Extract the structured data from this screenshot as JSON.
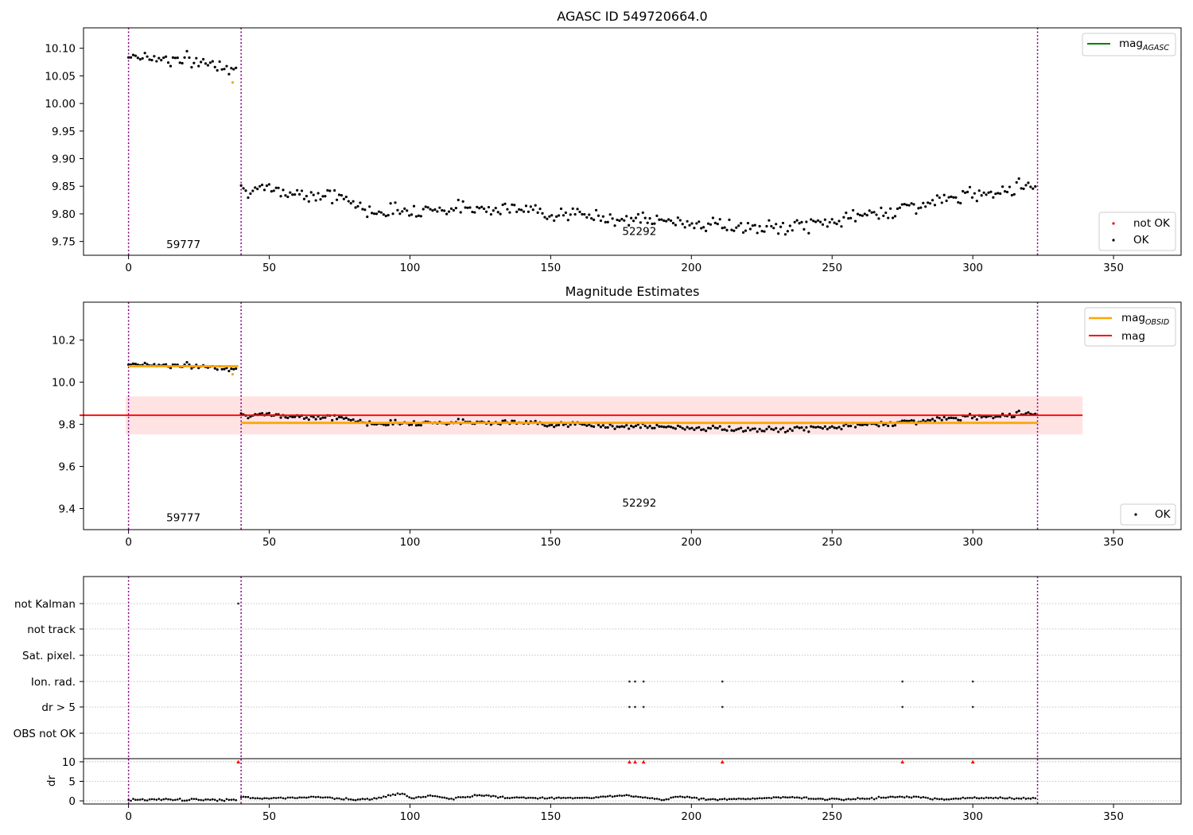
{
  "chart_data": [
    {
      "id": "top",
      "type": "scatter",
      "title": "AGASC ID 549720664.0",
      "xlim": [
        -16,
        374
      ],
      "ylim": [
        9.725,
        10.137
      ],
      "x_ticks": [
        0,
        50,
        100,
        150,
        200,
        250,
        300,
        350
      ],
      "y_ticks": [
        9.75,
        9.8,
        9.85,
        9.9,
        9.95,
        10.0,
        10.05,
        10.1
      ],
      "y_tick_labels": [
        "9.75",
        "9.80",
        "9.85",
        "9.90",
        "9.95",
        "10.00",
        "10.05",
        "10.10"
      ],
      "obs_boundaries": [
        0,
        40,
        323
      ],
      "obs_labels": [
        {
          "text": "59777",
          "x": 19.5,
          "y": 9.738
        },
        {
          "text": "52292",
          "x": 181.5,
          "y": 9.762
        }
      ],
      "line_legend": [
        {
          "label": "mag",
          "subscript": "AGASC",
          "color": "#008000"
        }
      ],
      "point_legend": [
        {
          "label": "not OK",
          "color": "#ff0000"
        },
        {
          "label": "OK",
          "color": "#000000"
        }
      ],
      "series": [
        {
          "name": "OK",
          "segments": [
            {
              "x_start": 0,
              "x_end": 39,
              "mean": 10.078,
              "trend": -0.02,
              "amp": 0.012
            },
            {
              "x_start": 40,
              "x_end": 323,
              "knots": [
                [
                  40,
                  9.845
                ],
                [
                  75,
                  9.832
                ],
                [
                  85,
                  9.805
                ],
                [
                  130,
                  9.812
                ],
                [
                  165,
                  9.795
                ],
                [
                  210,
                  9.78
                ],
                [
                  225,
                  9.772
                ],
                [
                  245,
                  9.782
                ],
                [
                  275,
                  9.81
                ],
                [
                  300,
                  9.835
                ],
                [
                  323,
                  9.855
                ]
              ],
              "amp": 0.011
            }
          ]
        },
        {
          "name": "not OK",
          "points": [
            [
              37,
              10.038
            ]
          ]
        }
      ]
    },
    {
      "id": "middle",
      "type": "scatter",
      "title": "Magnitude Estimates",
      "xlim": [
        -16,
        374
      ],
      "ylim": [
        9.3,
        10.38
      ],
      "x_ticks": [
        0,
        50,
        100,
        150,
        200,
        250,
        300,
        350
      ],
      "y_ticks": [
        9.4,
        9.6,
        9.8,
        10.0,
        10.2
      ],
      "y_tick_labels": [
        "9.4",
        "9.6",
        "9.8",
        "10.0",
        "10.2"
      ],
      "obs_boundaries": [
        0,
        40,
        323
      ],
      "obs_labels": [
        {
          "text": "59777",
          "x": 19.5,
          "y": 9.34
        },
        {
          "text": "52292",
          "x": 181.5,
          "y": 9.41
        }
      ],
      "mag": 9.843,
      "mag_band": [
        9.752,
        9.933
      ],
      "mag_band_x": [
        -1,
        339
      ],
      "mag_obsid": [
        {
          "x_start": 0,
          "x_end": 39,
          "value": 10.076
        },
        {
          "x_start": 40,
          "x_end": 323,
          "value": 9.807
        }
      ],
      "line_legend": [
        {
          "label": "mag",
          "subscript": "OBSID",
          "color": "#ffa500"
        },
        {
          "label": "mag",
          "subscript": "",
          "color": "#ff0000"
        }
      ],
      "point_legend": [
        {
          "label": "OK",
          "color": "#000000"
        }
      ]
    },
    {
      "id": "flags",
      "type": "scatter",
      "xlim": [
        -16,
        374
      ],
      "x_ticks": [
        0,
        50,
        100,
        150,
        200,
        250,
        300,
        350
      ],
      "categories": [
        "not Kalman",
        "not track",
        "Sat. pixel.",
        "Ion. rad.",
        "dr > 5",
        "OBS not OK"
      ],
      "obs_boundaries": [
        0,
        40,
        323
      ],
      "flag_points": {
        "not Kalman": [
          39
        ],
        "not track": [],
        "Sat. pixel.": [],
        "Ion. rad.": [
          178,
          180,
          183,
          211,
          275,
          300
        ],
        "dr > 5": [
          178,
          180,
          183,
          211,
          275,
          300
        ],
        "OBS not OK": []
      }
    },
    {
      "id": "dr",
      "type": "scatter",
      "xlim": [
        -16,
        374
      ],
      "ylim": [
        -0.8,
        10.8
      ],
      "ylabel": "dr",
      "x_ticks": [
        0,
        50,
        100,
        150,
        200,
        250,
        300,
        350
      ],
      "x_tick_labels": [
        "0",
        "50",
        "100",
        "150",
        "200",
        "250",
        "300",
        "350"
      ],
      "y_ticks": [
        0,
        5,
        10
      ],
      "y_tick_labels": [
        "0",
        "5",
        "10"
      ],
      "obs_boundaries": [
        0,
        40,
        323
      ],
      "clipped_markers": [
        39,
        178,
        180,
        183,
        211,
        275,
        300
      ],
      "series": [
        {
          "name": "dr",
          "segments": [
            {
              "x_start": 0,
              "x_end": 39,
              "knots": [
                [
                  0,
                  0.3
                ],
                [
                  39,
                  0.3
                ]
              ],
              "amp": 0.25
            },
            {
              "x_start": 40,
              "x_end": 323,
              "knots": [
                [
                  40,
                  1.0
                ],
                [
                  45,
                  0.6
                ],
                [
                  60,
                  0.9
                ],
                [
                  70,
                  0.9
                ],
                [
                  80,
                  0.3
                ],
                [
                  88,
                  0.6
                ],
                [
                  96,
                  1.8
                ],
                [
                  98,
                  1.8
                ],
                [
                  100,
                  0.7
                ],
                [
                  108,
                  1.3
                ],
                [
                  115,
                  0.5
                ],
                [
                  125,
                  1.4
                ],
                [
                  135,
                  0.8
                ],
                [
                  150,
                  0.7
                ],
                [
                  165,
                  0.8
                ],
                [
                  176,
                  1.5
                ],
                [
                  182,
                  0.9
                ],
                [
                  190,
                  0.3
                ],
                [
                  196,
                  1.2
                ],
                [
                  205,
                  0.4
                ],
                [
                  220,
                  0.5
                ],
                [
                  235,
                  1.0
                ],
                [
                  245,
                  0.5
                ],
                [
                  255,
                  0.4
                ],
                [
                  270,
                  0.9
                ],
                [
                  280,
                  1.0
                ],
                [
                  290,
                  0.4
                ],
                [
                  300,
                  0.8
                ],
                [
                  310,
                  0.7
                ],
                [
                  323,
                  0.6
                ]
              ],
              "amp": 0.2
            }
          ]
        }
      ]
    }
  ]
}
